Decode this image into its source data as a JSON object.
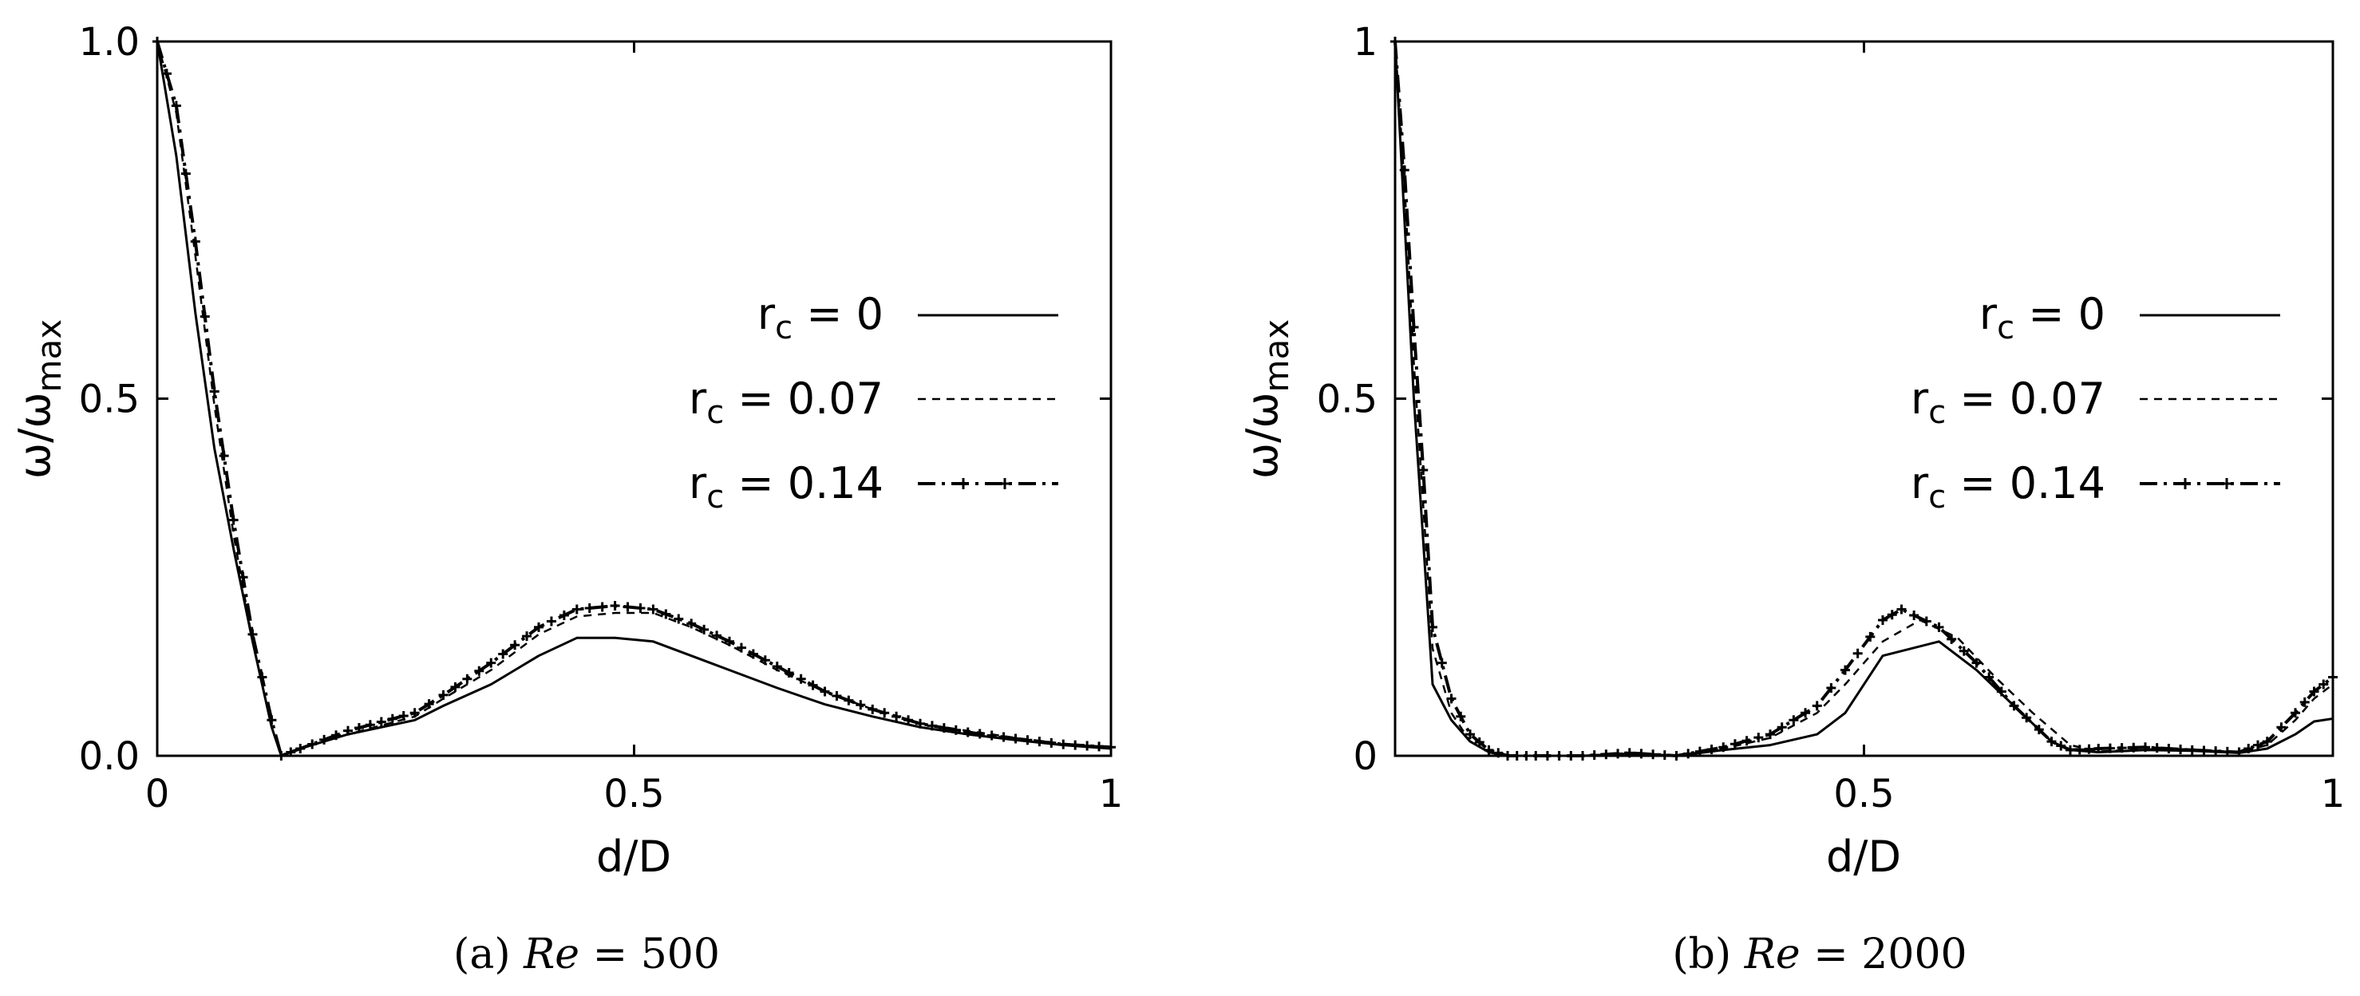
{
  "chart_data": [
    {
      "type": "line",
      "caption_prefix": "(a) ",
      "caption_re": "Re",
      "caption_rest": " = 500",
      "xlabel": "d/D",
      "ylabel_main": "ω/ω",
      "ylabel_sub": "max",
      "xlim": [
        0,
        1
      ],
      "ylim": [
        0,
        1
      ],
      "xticks": [
        {
          "v": 0,
          "label": "0"
        },
        {
          "v": 0.5,
          "label": "0.5"
        },
        {
          "v": 1,
          "label": "1"
        }
      ],
      "yticks": [
        {
          "v": 0,
          "label": "0.0"
        },
        {
          "v": 0.5,
          "label": "0.5"
        },
        {
          "v": 1,
          "label": "1.0"
        }
      ],
      "legend_position": "right",
      "series": [
        {
          "name": "0",
          "style": "solid",
          "x": [
            0,
            0.02,
            0.04,
            0.06,
            0.08,
            0.1,
            0.12,
            0.13,
            0.15,
            0.2,
            0.27,
            0.3,
            0.35,
            0.4,
            0.44,
            0.48,
            0.52,
            0.56,
            0.6,
            0.65,
            0.7,
            0.75,
            0.8,
            0.85,
            0.9,
            0.95,
            1.0
          ],
          "y": [
            1.0,
            0.84,
            0.62,
            0.43,
            0.29,
            0.16,
            0.04,
            0.0,
            0.01,
            0.03,
            0.05,
            0.07,
            0.1,
            0.14,
            0.165,
            0.165,
            0.16,
            0.14,
            0.12,
            0.095,
            0.072,
            0.055,
            0.04,
            0.03,
            0.022,
            0.015,
            0.01
          ]
        },
        {
          "name": "0.07",
          "style": "dashed",
          "x": [
            0,
            0.02,
            0.04,
            0.06,
            0.08,
            0.1,
            0.12,
            0.13,
            0.15,
            0.2,
            0.27,
            0.3,
            0.35,
            0.4,
            0.44,
            0.48,
            0.52,
            0.56,
            0.6,
            0.65,
            0.7,
            0.75,
            0.8,
            0.85,
            0.9,
            0.95,
            1.0
          ],
          "y": [
            1.0,
            0.9,
            0.7,
            0.49,
            0.31,
            0.16,
            0.04,
            0.0,
            0.01,
            0.03,
            0.055,
            0.08,
            0.12,
            0.17,
            0.195,
            0.2,
            0.2,
            0.18,
            0.155,
            0.12,
            0.09,
            0.065,
            0.045,
            0.035,
            0.025,
            0.017,
            0.012
          ]
        },
        {
          "name": "0.14",
          "style": "dash-dot-marker",
          "x": [
            0,
            0.02,
            0.04,
            0.06,
            0.08,
            0.1,
            0.12,
            0.13,
            0.15,
            0.2,
            0.27,
            0.3,
            0.35,
            0.4,
            0.44,
            0.48,
            0.52,
            0.56,
            0.6,
            0.65,
            0.7,
            0.75,
            0.8,
            0.85,
            0.9,
            0.95,
            1.0
          ],
          "y": [
            1.0,
            0.91,
            0.72,
            0.51,
            0.33,
            0.17,
            0.05,
            0.0,
            0.01,
            0.035,
            0.06,
            0.085,
            0.13,
            0.18,
            0.205,
            0.21,
            0.205,
            0.185,
            0.16,
            0.125,
            0.09,
            0.065,
            0.045,
            0.033,
            0.024,
            0.016,
            0.012
          ]
        }
      ]
    },
    {
      "type": "line",
      "caption_prefix": "(b) ",
      "caption_re": "Re",
      "caption_rest": " = 2000",
      "xlabel": "d/D",
      "ylabel_main": "ω/ω",
      "ylabel_sub": "max",
      "xlim": [
        0,
        1
      ],
      "ylim": [
        0,
        1
      ],
      "xticks": [
        {
          "v": 0.5,
          "label": "0.5"
        },
        {
          "v": 1,
          "label": "1"
        }
      ],
      "yticks": [
        {
          "v": 0,
          "label": "0"
        },
        {
          "v": 0.5,
          "label": "0.5"
        },
        {
          "v": 1,
          "label": "1"
        }
      ],
      "legend_position": "right",
      "series": [
        {
          "name": "0",
          "style": "solid",
          "x": [
            0,
            0.01,
            0.02,
            0.03,
            0.04,
            0.06,
            0.08,
            0.1,
            0.12,
            0.15,
            0.2,
            0.25,
            0.3,
            0.35,
            0.4,
            0.45,
            0.48,
            0.52,
            0.58,
            0.62,
            0.66,
            0.7,
            0.72,
            0.75,
            0.8,
            0.85,
            0.9,
            0.93,
            0.96,
            0.98,
            1.0
          ],
          "y": [
            1.0,
            0.75,
            0.5,
            0.3,
            0.1,
            0.05,
            0.02,
            0.005,
            0.0,
            0.0,
            0.0,
            0.003,
            0.0,
            0.008,
            0.015,
            0.03,
            0.06,
            0.14,
            0.16,
            0.12,
            0.07,
            0.02,
            0.008,
            0.005,
            0.008,
            0.007,
            0.004,
            0.01,
            0.03,
            0.048,
            0.052
          ]
        },
        {
          "name": "0.07",
          "style": "dashed",
          "x": [
            0,
            0.01,
            0.02,
            0.03,
            0.04,
            0.06,
            0.08,
            0.1,
            0.12,
            0.15,
            0.2,
            0.25,
            0.3,
            0.35,
            0.4,
            0.45,
            0.48,
            0.52,
            0.56,
            0.6,
            0.64,
            0.68,
            0.72,
            0.75,
            0.8,
            0.85,
            0.9,
            0.93,
            0.96,
            0.98,
            1.0
          ],
          "y": [
            1.0,
            0.8,
            0.55,
            0.35,
            0.15,
            0.06,
            0.02,
            0.005,
            0.0,
            0.0,
            0.0,
            0.003,
            0.0,
            0.01,
            0.025,
            0.06,
            0.1,
            0.16,
            0.19,
            0.165,
            0.11,
            0.06,
            0.015,
            0.006,
            0.009,
            0.009,
            0.005,
            0.015,
            0.05,
            0.08,
            0.1
          ]
        },
        {
          "name": "0.14",
          "style": "dash-dot-marker",
          "x": [
            0,
            0.01,
            0.02,
            0.03,
            0.04,
            0.06,
            0.08,
            0.1,
            0.12,
            0.15,
            0.2,
            0.25,
            0.3,
            0.35,
            0.4,
            0.45,
            0.48,
            0.52,
            0.54,
            0.58,
            0.62,
            0.66,
            0.7,
            0.72,
            0.75,
            0.8,
            0.85,
            0.9,
            0.93,
            0.96,
            0.98,
            1.0
          ],
          "y": [
            1.0,
            0.82,
            0.6,
            0.4,
            0.18,
            0.08,
            0.03,
            0.008,
            0.0,
            0.0,
            0.0,
            0.004,
            0.0,
            0.012,
            0.03,
            0.07,
            0.12,
            0.19,
            0.205,
            0.18,
            0.13,
            0.07,
            0.02,
            0.008,
            0.01,
            0.012,
            0.008,
            0.005,
            0.02,
            0.06,
            0.09,
            0.11
          ]
        }
      ]
    }
  ]
}
